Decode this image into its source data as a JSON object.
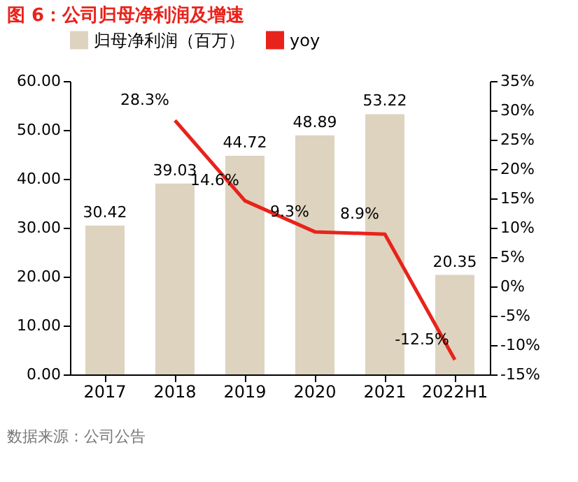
{
  "chart_data": {
    "type": "bar",
    "title": "图 6：公司归母净利润及增速",
    "categories": [
      "2017",
      "2018",
      "2019",
      "2020",
      "2021",
      "2022H1"
    ],
    "series": [
      {
        "name": "归母净利润（百万）",
        "color": "#ddd3bf",
        "values": [
          30.42,
          39.03,
          44.72,
          48.89,
          53.22,
          20.35
        ],
        "value_labels": [
          "30.42",
          "39.03",
          "44.72",
          "48.89",
          "53.22",
          "20.35"
        ]
      },
      {
        "name": "yoy",
        "type": "line",
        "axis": "y2",
        "color": "#e8231b",
        "values": [
          null,
          28.3,
          14.6,
          9.3,
          8.9,
          -12.5
        ],
        "value_labels": [
          null,
          "28.3%",
          "14.6%",
          "9.3%",
          "8.9%",
          "-12.5%"
        ]
      }
    ],
    "ylim": [
      0,
      60
    ],
    "yticks": [
      {
        "value": 0,
        "label": "0.00"
      },
      {
        "value": 10,
        "label": "10.00"
      },
      {
        "value": 20,
        "label": "20.00"
      },
      {
        "value": 30,
        "label": "30.00"
      },
      {
        "value": 40,
        "label": "40.00"
      },
      {
        "value": 50,
        "label": "50.00"
      },
      {
        "value": 60,
        "label": "60.00"
      }
    ],
    "y2lim": [
      -15,
      35
    ],
    "y2ticks": [
      {
        "value": -15,
        "label": "-15%"
      },
      {
        "value": -10,
        "label": "-10%"
      },
      {
        "value": -5,
        "label": "-5%"
      },
      {
        "value": 0,
        "label": "0%"
      },
      {
        "value": 5,
        "label": "5%"
      },
      {
        "value": 10,
        "label": "10%"
      },
      {
        "value": 15,
        "label": "15%"
      },
      {
        "value": 20,
        "label": "20%"
      },
      {
        "value": 25,
        "label": "25%"
      },
      {
        "value": 30,
        "label": "30%"
      },
      {
        "value": 35,
        "label": "35%"
      }
    ],
    "grid": false,
    "legend": "top",
    "marker": "none",
    "line_style": "solid",
    "annotations": [
      "数据来源：公司公告"
    ]
  }
}
